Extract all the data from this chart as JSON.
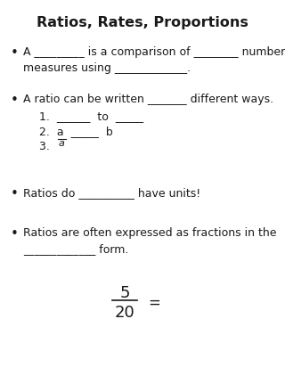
{
  "title": "Ratios, Rates, Proportions",
  "title_fontsize": 11.5,
  "body_fontsize": 9,
  "bg_color": "#ffffff",
  "text_color": "#1a1a1a",
  "bullet1_line1": "A _________ is a comparison of ________ numbers and",
  "bullet1_line2": "measures using _____________.",
  "bullet2_line1": "A ratio can be written _______ different ways.",
  "bullet2_sub1": "1.  ______  to  _____",
  "bullet2_sub2": "2.  a  _____  b",
  "bullet2_sub3_pre": "3.  ",
  "bullet2_sub3_a": "a",
  "bullet3": "Ratios do __________ have units!",
  "bullet4_line1": "Ratios are often expressed as fractions in the",
  "bullet4_line2": "_____________ form.",
  "frac_num": "5",
  "frac_den": "20",
  "frac_eq": "="
}
